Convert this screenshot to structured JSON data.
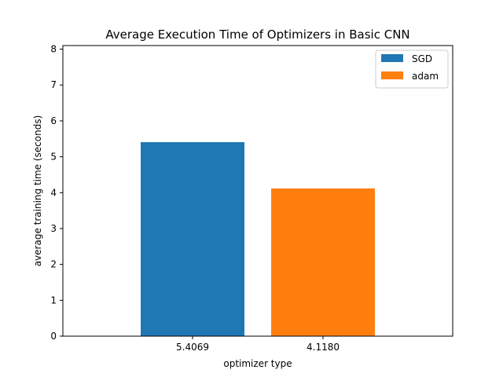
{
  "chart_data": {
    "type": "bar",
    "title": "Average Execution Time of Optimizers in Basic CNN",
    "xlabel": "optimizer type",
    "ylabel": "average training time (seconds)",
    "ylim": [
      0,
      8.1
    ],
    "yticks": [
      0,
      1,
      2,
      3,
      4,
      5,
      6,
      7,
      8
    ],
    "grid": false,
    "legend_position": "top-right",
    "bars": [
      {
        "name": "SGD",
        "tick_label": "5.4069",
        "value": 5.4069,
        "color": "#1f77b4"
      },
      {
        "name": "adam",
        "tick_label": "4.1180",
        "value": 4.118,
        "color": "#ff7f0e"
      }
    ]
  }
}
